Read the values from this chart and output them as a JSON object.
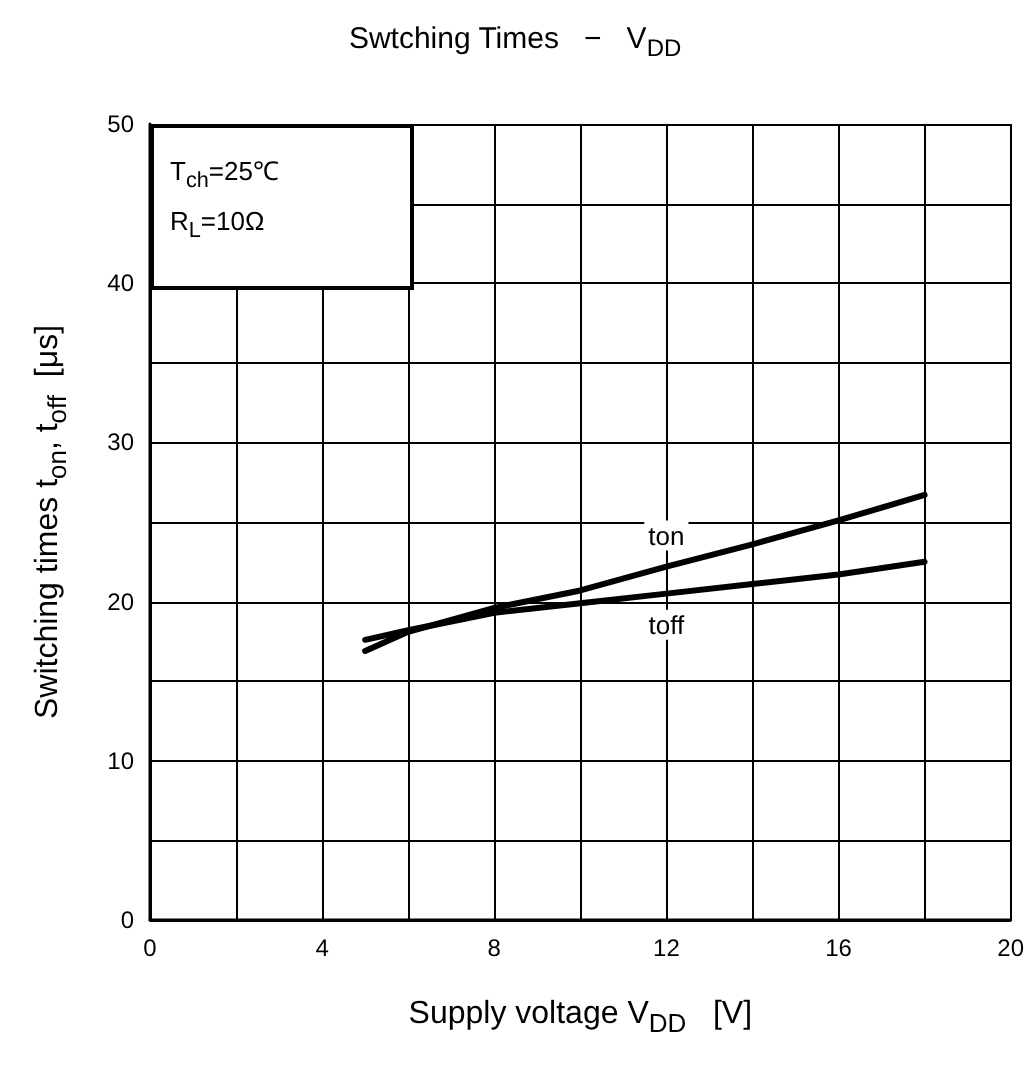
{
  "chart_data": {
    "type": "line",
    "title": "Swtching Times   −   V$_{DD}$",
    "xlabel": "Supply voltage V$_{DD}$   [V]",
    "ylabel": "Switching times t$_{on}$, t$_{off}$  [μs]",
    "annotations": [
      "T$_{ch}$=25℃",
      "R$_{L}$=10Ω"
    ],
    "x": [
      5,
      6,
      8,
      10,
      12,
      14,
      16,
      18
    ],
    "series": [
      {
        "name": "ton",
        "color": "#000000",
        "values": [
          16.9,
          18.1,
          19.6,
          20.7,
          22.2,
          23.6,
          25.1,
          26.7
        ]
      },
      {
        "name": "toff",
        "color": "#000000",
        "values": [
          17.6,
          18.2,
          19.3,
          19.9,
          20.5,
          21.1,
          21.7,
          22.5
        ]
      }
    ],
    "xlim": [
      0,
      20
    ],
    "xticks": [
      0,
      4,
      8,
      12,
      16,
      20
    ],
    "ylim": [
      0,
      50
    ],
    "yticks": [
      0,
      10,
      20,
      30,
      40,
      50
    ],
    "grid": true,
    "legend": false,
    "marker": "none",
    "line_style": "solid"
  }
}
